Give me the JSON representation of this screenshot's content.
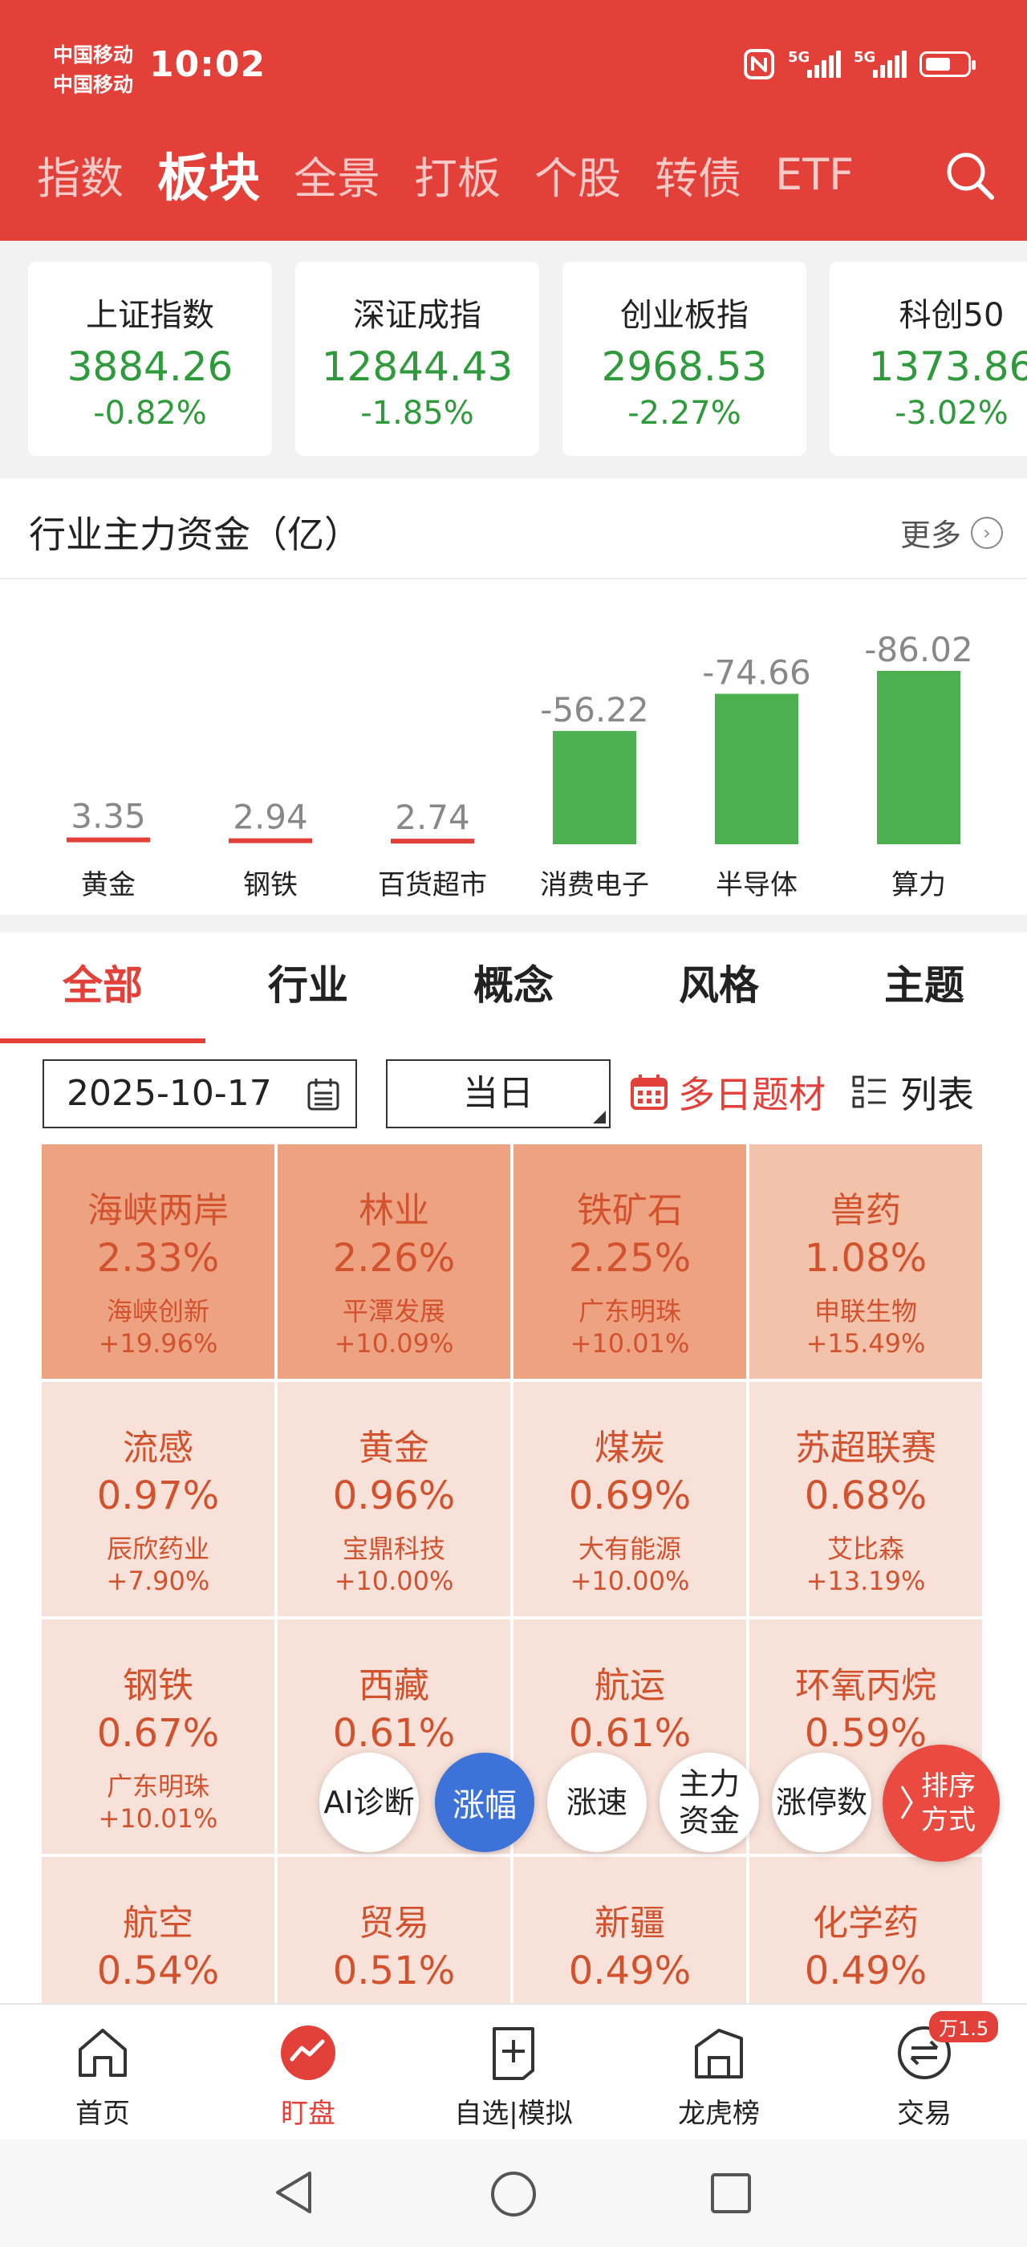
{
  "status_bar": {
    "carrier_1": "中国移动",
    "carrier_2": "中国移动",
    "time": "10:02",
    "signal_1_label": "5G",
    "signal_2_label": "5G"
  },
  "top_tabs": [
    {
      "label": "指数",
      "active": false
    },
    {
      "label": "板块",
      "active": true
    },
    {
      "label": "全景",
      "active": false
    },
    {
      "label": "打板",
      "active": false
    },
    {
      "label": "个股",
      "active": false
    },
    {
      "label": "转债",
      "active": false
    },
    {
      "label": "ETF",
      "active": false
    }
  ],
  "indices": [
    {
      "name": "上证指数",
      "price": "3884.26",
      "change": "-0.82%"
    },
    {
      "name": "深证成指",
      "price": "12844.43",
      "change": "-1.85%"
    },
    {
      "name": "创业板指",
      "price": "2968.53",
      "change": "-2.27%"
    },
    {
      "name": "科创50",
      "price": "1373.86",
      "change": "-3.02%"
    }
  ],
  "fund_flow": {
    "title": "行业主力资金（亿）",
    "more_label": "更多"
  },
  "chart_data": {
    "type": "bar",
    "categories": [
      "黄金",
      "钢铁",
      "百货超市",
      "消费电子",
      "半导体",
      "算力"
    ],
    "values": [
      3.35,
      2.94,
      2.74,
      -56.22,
      -74.66,
      -86.02
    ],
    "value_labels": [
      "3.35",
      "2.94",
      "2.74",
      "-56.22",
      "-74.66",
      "-86.02"
    ],
    "inflow_color": "#e3403a",
    "outflow_color": "#4caf50"
  },
  "category_tabs": [
    {
      "label": "全部",
      "active": true
    },
    {
      "label": "行业",
      "active": false
    },
    {
      "label": "概念",
      "active": false
    },
    {
      "label": "风格",
      "active": false
    },
    {
      "label": "主题",
      "active": false
    }
  ],
  "filters": {
    "date": "2025-10-17",
    "period": "当日",
    "multi_day_label": "多日题材",
    "list_label": "列表"
  },
  "sectors": [
    {
      "name": "海峡两岸",
      "pct": "2.33%",
      "stock": "海峡创新",
      "stock_pct": "+19.96%",
      "heat": 3
    },
    {
      "name": "林业",
      "pct": "2.26%",
      "stock": "平潭发展",
      "stock_pct": "+10.09%",
      "heat": 3
    },
    {
      "name": "铁矿石",
      "pct": "2.25%",
      "stock": "广东明珠",
      "stock_pct": "+10.01%",
      "heat": 3
    },
    {
      "name": "兽药",
      "pct": "1.08%",
      "stock": "申联生物",
      "stock_pct": "+15.49%",
      "heat": 2
    },
    {
      "name": "流感",
      "pct": "0.97%",
      "stock": "辰欣药业",
      "stock_pct": "+7.90%",
      "heat": 1
    },
    {
      "name": "黄金",
      "pct": "0.96%",
      "stock": "宝鼎科技",
      "stock_pct": "+10.00%",
      "heat": 1
    },
    {
      "name": "煤炭",
      "pct": "0.69%",
      "stock": "大有能源",
      "stock_pct": "+10.00%",
      "heat": 1
    },
    {
      "name": "苏超联赛",
      "pct": "0.68%",
      "stock": "艾比森",
      "stock_pct": "+13.19%",
      "heat": 1
    },
    {
      "name": "钢铁",
      "pct": "0.67%",
      "stock": "广东明珠",
      "stock_pct": "+10.01%",
      "heat": 1
    },
    {
      "name": "西藏",
      "pct": "0.61%",
      "stock": "",
      "stock_pct": "",
      "heat": 1
    },
    {
      "name": "航运",
      "pct": "0.61%",
      "stock": "",
      "stock_pct": "",
      "heat": 1
    },
    {
      "name": "环氧丙烷",
      "pct": "0.59%",
      "stock": "",
      "stock_pct": "",
      "heat": 1
    },
    {
      "name": "航空",
      "pct": "0.54%",
      "stock": "",
      "stock_pct": "",
      "heat": 1
    },
    {
      "name": "贸易",
      "pct": "0.51%",
      "stock": "",
      "stock_pct": "",
      "heat": 1
    },
    {
      "name": "新疆",
      "pct": "0.49%",
      "stock": "",
      "stock_pct": "",
      "heat": 1
    },
    {
      "name": "化学药",
      "pct": "0.49%",
      "stock": "",
      "stock_pct": "",
      "heat": 1
    }
  ],
  "sort_buttons": {
    "ai": "AI诊断",
    "rise": "涨幅",
    "speed": "涨速",
    "capital_line1": "主力",
    "capital_line2": "资金",
    "limit_up": "涨停数",
    "sort_line1": "排序",
    "sort_line2": "方式"
  },
  "bottom_nav": [
    {
      "label": "首页",
      "icon": "home-icon",
      "active": false
    },
    {
      "label": "盯盘",
      "icon": "watch-market-icon",
      "active": true
    },
    {
      "label": "自选|模拟",
      "icon": "add-watchlist-icon",
      "active": false
    },
    {
      "label": "龙虎榜",
      "icon": "dragon-tiger-icon",
      "active": false
    },
    {
      "label": "交易",
      "icon": "trade-icon",
      "active": false,
      "badge": "万1.5"
    }
  ],
  "colors": {
    "header_bg": "#e3403a",
    "accent": "#e3403a",
    "down": "#2f9a3c",
    "sort_active": "#3d72d9"
  }
}
